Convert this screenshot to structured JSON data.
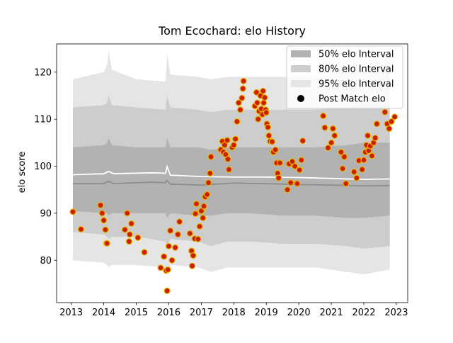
{
  "chart_data": {
    "type": "scatter",
    "title": "Tom Ecochard: elo History",
    "xlabel": "",
    "ylabel": "elo score",
    "xlim": [
      2012.55,
      2023.35
    ],
    "ylim": [
      71,
      126
    ],
    "x_ticks": [
      "2013",
      "2014",
      "2015",
      "2016",
      "2017",
      "2018",
      "2019",
      "2020",
      "2021",
      "2022",
      "2023"
    ],
    "y_ticks": [
      "80",
      "90",
      "100",
      "110",
      "120"
    ],
    "grid": false,
    "legend_position": "top-right",
    "legend": [
      {
        "label": "50% elo Interval",
        "kind": "band",
        "color": "#b2b2b2"
      },
      {
        "label": "80% elo Interval",
        "kind": "band",
        "color": "#cdcdcd"
      },
      {
        "label": "95% elo Interval",
        "kind": "band",
        "color": "#e5e5e5"
      },
      {
        "label": "Post Match elo",
        "kind": "point",
        "color": "#000000"
      }
    ],
    "colors": {
      "band50": "#b2b2b2",
      "band80": "#cdcdcd",
      "band95": "#e5e5e5",
      "median_line": "#8c8c8c",
      "mean_line": "#ffffff",
      "point_fill": "#cc1f00",
      "point_edge": "#e6b800"
    },
    "bands": {
      "x": [
        2013.05,
        2014.0,
        2014.1,
        2014.15,
        2014.25,
        2015.0,
        2015.9,
        2015.95,
        2016.05,
        2016.9,
        2017.3,
        2017.8,
        2018.5,
        2019.5,
        2020.5,
        2021.5,
        2022.0,
        2022.8
      ],
      "p95_hi": [
        118.5,
        120.0,
        121.5,
        124.5,
        120.5,
        118.5,
        118.0,
        124.0,
        119.5,
        119.0,
        118.5,
        119.0,
        119.0,
        119.0,
        119.0,
        120.0,
        120.5,
        120.5
      ],
      "p80_hi": [
        112.5,
        113.0,
        113.5,
        115.0,
        113.0,
        112.5,
        112.0,
        115.0,
        112.5,
        112.0,
        111.5,
        112.0,
        112.0,
        112.0,
        112.0,
        112.5,
        113.0,
        113.0
      ],
      "p50_hi": [
        104.0,
        104.5,
        105.0,
        106.0,
        104.5,
        104.0,
        104.0,
        106.0,
        104.0,
        104.0,
        103.5,
        104.0,
        104.0,
        104.0,
        104.0,
        104.5,
        105.0,
        105.0
      ],
      "p50_lo": [
        90.5,
        90.0,
        90.0,
        89.5,
        90.0,
        90.0,
        90.0,
        89.0,
        90.0,
        89.5,
        89.5,
        90.0,
        90.0,
        89.5,
        89.5,
        89.0,
        89.0,
        89.5
      ],
      "p80_lo": [
        86.0,
        85.5,
        85.0,
        84.5,
        85.0,
        85.0,
        84.0,
        83.0,
        84.5,
        84.0,
        83.0,
        84.0,
        84.0,
        83.5,
        83.5,
        83.0,
        82.5,
        83.0
      ],
      "p95_lo": [
        80.0,
        79.5,
        79.0,
        78.5,
        79.0,
        79.0,
        78.5,
        77.0,
        79.0,
        78.5,
        77.5,
        78.5,
        78.5,
        78.5,
        78.5,
        77.5,
        77.0,
        78.0
      ]
    },
    "lines": {
      "x": [
        2013.05,
        2014.0,
        2014.15,
        2014.3,
        2015.5,
        2015.9,
        2015.95,
        2016.05,
        2017.0,
        2018.0,
        2019.0,
        2020.0,
        2021.0,
        2022.0,
        2022.8
      ],
      "median": [
        96.3,
        96.3,
        96.8,
        96.3,
        96.6,
        96.5,
        97.0,
        96.2,
        96.0,
        96.4,
        96.3,
        96.1,
        96.0,
        95.8,
        95.9
      ],
      "mean": [
        98.2,
        98.4,
        98.9,
        98.4,
        98.6,
        98.5,
        99.9,
        98.1,
        97.8,
        97.7,
        97.7,
        97.6,
        97.4,
        97.2,
        97.3
      ]
    },
    "points": {
      "x": [
        2013.05,
        2013.3,
        2013.9,
        2013.95,
        2014.0,
        2014.05,
        2014.08,
        2014.1,
        2014.65,
        2014.72,
        2014.78,
        2014.8,
        2014.85,
        2015.05,
        2015.25,
        2015.75,
        2015.85,
        2015.92,
        2015.95,
        2015.97,
        2016.0,
        2016.05,
        2016.1,
        2016.2,
        2016.28,
        2016.33,
        2016.65,
        2016.7,
        2016.72,
        2016.75,
        2016.8,
        2016.82,
        2016.85,
        2016.9,
        2016.95,
        2017.0,
        2017.05,
        2017.08,
        2017.12,
        2017.18,
        2017.22,
        2017.27,
        2017.3,
        2017.6,
        2017.65,
        2017.68,
        2017.72,
        2017.75,
        2017.8,
        2017.82,
        2017.85,
        2017.95,
        2018.0,
        2018.05,
        2018.1,
        2018.15,
        2018.2,
        2018.25,
        2018.28,
        2018.3,
        2018.65,
        2018.7,
        2018.72,
        2018.75,
        2018.78,
        2018.82,
        2018.85,
        2018.88,
        2018.9,
        2018.92,
        2018.95,
        2018.98,
        2019.0,
        2019.02,
        2019.05,
        2019.08,
        2019.12,
        2019.18,
        2019.22,
        2019.28,
        2019.32,
        2019.35,
        2019.38,
        2019.42,
        2019.65,
        2019.7,
        2019.75,
        2019.8,
        2019.88,
        2019.95,
        2020.02,
        2020.08,
        2020.12,
        2020.75,
        2020.8,
        2020.9,
        2021.0,
        2021.05,
        2021.1,
        2021.3,
        2021.35,
        2021.4,
        2021.45,
        2021.7,
        2021.78,
        2021.85,
        2021.95,
        2022.0,
        2022.05,
        2022.08,
        2022.12,
        2022.15,
        2022.2,
        2022.25,
        2022.3,
        2022.35,
        2022.4,
        2022.65,
        2022.72,
        2022.78,
        2022.85,
        2022.95
      ],
      "y": [
        90.3,
        86.6,
        91.7,
        90.0,
        88.5,
        86.5,
        83.6,
        83.6,
        86.5,
        90.0,
        84.0,
        85.5,
        87.8,
        84.8,
        81.7,
        78.4,
        80.8,
        77.8,
        73.5,
        78.0,
        83.0,
        86.3,
        80.0,
        82.7,
        85.5,
        88.2,
        85.7,
        82.0,
        78.8,
        81.0,
        84.6,
        89.9,
        92.0,
        84.5,
        87.2,
        90.5,
        89.0,
        91.5,
        93.5,
        94.0,
        96.5,
        98.5,
        102.0,
        103.5,
        105.3,
        103.0,
        104.5,
        102.5,
        105.5,
        101.5,
        99.3,
        104.0,
        104.5,
        105.8,
        109.5,
        113.5,
        112.0,
        114.5,
        116.5,
        118.1,
        112.8,
        115.7,
        113.5,
        110.0,
        111.7,
        115.0,
        112.2,
        111.0,
        116.0,
        113.5,
        114.6,
        112.0,
        111.4,
        109.0,
        108.3,
        106.5,
        105.3,
        105.2,
        103.0,
        103.5,
        100.7,
        98.5,
        97.5,
        100.7,
        95.0,
        100.5,
        96.5,
        101.0,
        100.0,
        96.3,
        99.2,
        101.3,
        105.4,
        110.7,
        108.2,
        103.9,
        105.0,
        108.0,
        106.5,
        103.0,
        99.5,
        102.0,
        96.3,
        98.8,
        97.5,
        101.2,
        99.3,
        101.3,
        103.0,
        104.5,
        106.5,
        103.3,
        104.3,
        102.2,
        105.0,
        106.0,
        109.0,
        111.5,
        109.0,
        108.0,
        109.5,
        110.5
      ]
    }
  }
}
